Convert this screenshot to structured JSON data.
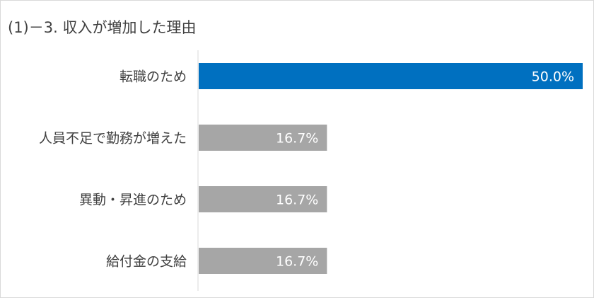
{
  "chart_data": {
    "type": "bar",
    "orientation": "horizontal",
    "title": "(1)－3. 収入が増加した理由",
    "categories": [
      "転職のため",
      "人員不足で勤務が増えた",
      "異動・昇進のため",
      "給付金の支給"
    ],
    "values": [
      50.0,
      16.7,
      16.7,
      16.7
    ],
    "value_labels": [
      "50.0%",
      "16.7%",
      "16.7%",
      "16.7%"
    ],
    "xlim": [
      0,
      50
    ],
    "grid": false,
    "legend": "none",
    "colors": {
      "highlight": "#0070c0",
      "default": "#a6a6a6",
      "axis": "#d9d9d9"
    }
  }
}
